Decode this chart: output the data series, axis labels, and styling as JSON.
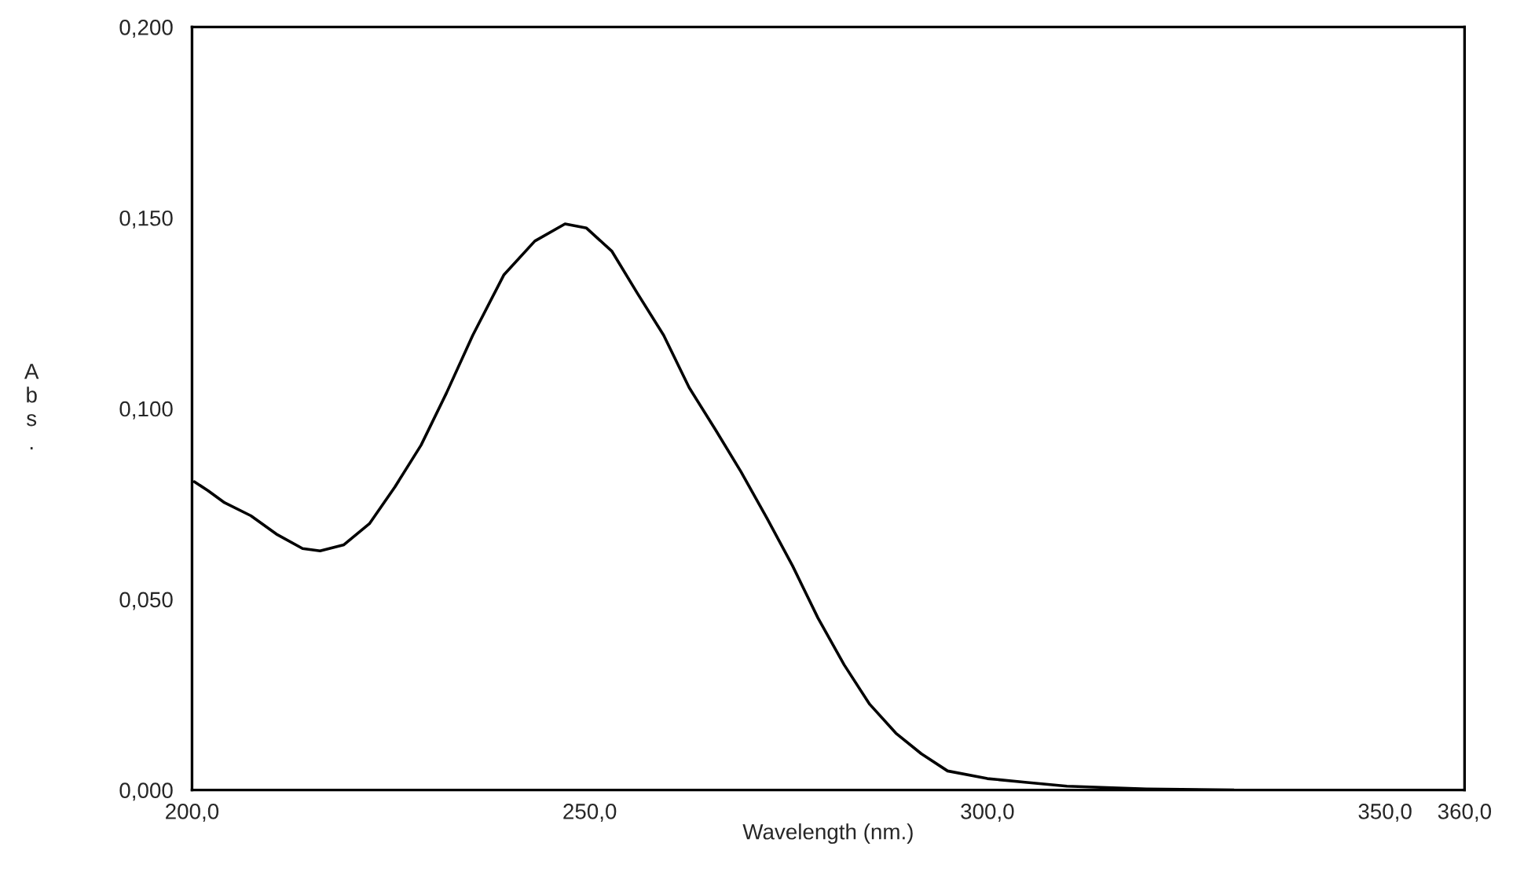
{
  "chart_data": {
    "type": "line",
    "xlabel": "Wavelength (nm.)",
    "ylabel": "Abs.",
    "series": [
      {
        "color": "#000000",
        "x": [
          200.3,
          202.0,
          204.1,
          207.4,
          210.6,
          213.9,
          216.1,
          219.1,
          222.3,
          225.5,
          228.8,
          232.0,
          235.3,
          239.2,
          243.1,
          246.9,
          249.6,
          252.8,
          256.0,
          259.3,
          262.5,
          265.8,
          269.0,
          272.3,
          275.5,
          278.7,
          282.0,
          285.2,
          288.5,
          291.7,
          295.0,
          300.0,
          305.0,
          310.0,
          320.0,
          331.0
        ],
        "values": [
          0.0808,
          0.0785,
          0.0753,
          0.0719,
          0.0671,
          0.0633,
          0.0627,
          0.0643,
          0.0698,
          0.0794,
          0.0904,
          0.1041,
          0.1192,
          0.135,
          0.1439,
          0.1484,
          0.1473,
          0.1412,
          0.1302,
          0.1192,
          0.1055,
          0.0945,
          0.0835,
          0.0712,
          0.0588,
          0.0451,
          0.0328,
          0.0225,
          0.0149,
          0.0095,
          0.005,
          0.003,
          0.002,
          0.001,
          0.0003,
          0.0
        ]
      }
    ],
    "xlim": [
      200,
      360
    ],
    "xticks": [
      {
        "value": 200,
        "label": "200,0"
      },
      {
        "value": 250,
        "label": "250,0"
      },
      {
        "value": 300,
        "label": "300,0"
      },
      {
        "value": 350,
        "label": "350,0"
      },
      {
        "value": 360,
        "label": "360,0"
      }
    ],
    "ylim": [
      0,
      0.2
    ],
    "yticks": [
      {
        "value": 0,
        "label": "0,000"
      },
      {
        "value": 0.05,
        "label": "0,050"
      },
      {
        "value": 0.1,
        "label": "0,100"
      },
      {
        "value": 0.15,
        "label": "0,150"
      },
      {
        "value": 0.2,
        "label": "0,200"
      }
    ],
    "grid": false,
    "marker": "none",
    "line_style": "solid"
  }
}
